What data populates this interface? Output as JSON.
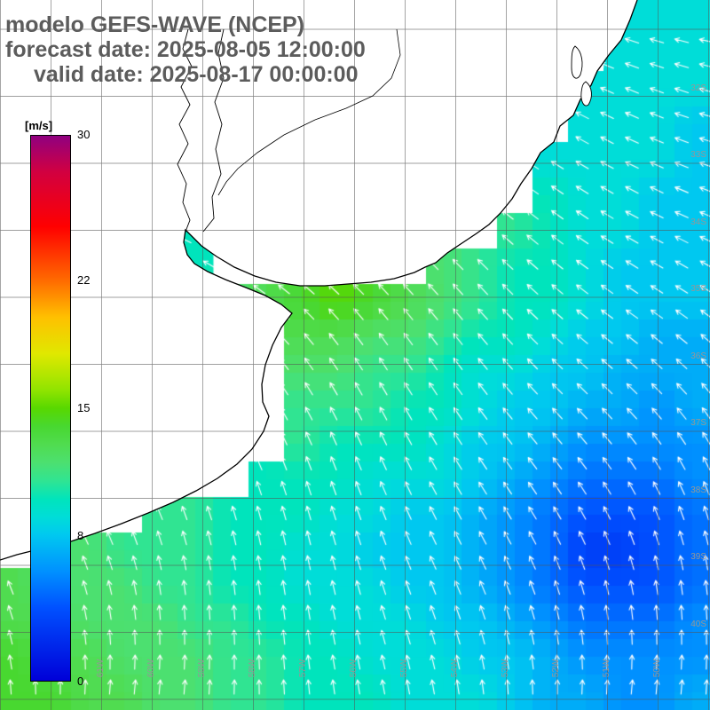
{
  "header": {
    "model_line": "modelo GEFS-WAVE (NCEP)",
    "forecast_line": "forecast date: 2025-08-05 12:00:00",
    "valid_line": "valid date: 2025-08-17 00:00:00",
    "text_color": "#5c5c5c"
  },
  "colorbar": {
    "unit": "[m/s]",
    "min": 0,
    "max": 30,
    "ticks": [
      {
        "label": "30",
        "value": 30
      },
      {
        "label": "22",
        "value": 22
      },
      {
        "label": "15",
        "value": 15
      },
      {
        "label": "8",
        "value": 8
      },
      {
        "label": "0",
        "value": 0
      }
    ]
  },
  "map": {
    "lat_labels": [
      "32S",
      "33S",
      "34S",
      "35S",
      "36S",
      "37S",
      "38S",
      "39S",
      "40S"
    ],
    "lon_labels": [
      "62W",
      "61W",
      "60W",
      "59W",
      "58W",
      "57W",
      "56W",
      "55W",
      "54W",
      "53W",
      "52W",
      "51W",
      "50W"
    ],
    "label_color": "#969696",
    "arrow_color": "#ffffff",
    "land_color": "#ffffff",
    "coast_color": "#000000",
    "grid_color": "#555555"
  },
  "chart_data": {
    "type": "heatmap",
    "units": "m/s",
    "value_range": [
      0,
      30
    ],
    "colormap": [
      [
        0,
        "#0000d8"
      ],
      [
        4,
        "#0050ff"
      ],
      [
        6,
        "#0090ff"
      ],
      [
        8,
        "#00c8f0"
      ],
      [
        9,
        "#00ddd8"
      ],
      [
        10,
        "#00e4bc"
      ],
      [
        11,
        "#30e492"
      ],
      [
        12,
        "#4ce070"
      ],
      [
        13,
        "#50dc50"
      ],
      [
        14,
        "#48d830"
      ],
      [
        15,
        "#58d800"
      ],
      [
        16,
        "#90e400"
      ],
      [
        18,
        "#e0e800"
      ],
      [
        20,
        "#ffc000"
      ],
      [
        22,
        "#ff6c00"
      ],
      [
        25,
        "#ff0000"
      ],
      [
        28,
        "#d20040"
      ],
      [
        30,
        "#900080"
      ]
    ],
    "grid_rows": 20,
    "grid_cols": 20,
    "grid": [
      [
        null,
        null,
        null,
        null,
        null,
        null,
        null,
        null,
        null,
        null,
        null,
        null,
        null,
        null,
        null,
        null,
        null,
        9,
        9,
        9
      ],
      [
        null,
        null,
        null,
        null,
        null,
        null,
        null,
        null,
        null,
        null,
        null,
        null,
        null,
        null,
        null,
        null,
        null,
        9,
        9,
        9
      ],
      [
        null,
        null,
        null,
        null,
        null,
        null,
        null,
        null,
        null,
        null,
        null,
        null,
        null,
        null,
        null,
        null,
        9,
        9,
        9,
        9
      ],
      [
        null,
        null,
        null,
        null,
        null,
        null,
        null,
        null,
        null,
        null,
        null,
        null,
        null,
        null,
        null,
        null,
        9,
        9,
        9,
        8
      ],
      [
        null,
        null,
        null,
        null,
        null,
        null,
        null,
        null,
        null,
        null,
        null,
        null,
        null,
        null,
        null,
        9,
        9,
        9,
        9,
        8
      ],
      [
        null,
        null,
        null,
        null,
        null,
        null,
        null,
        null,
        null,
        null,
        null,
        null,
        null,
        null,
        null,
        10,
        9,
        9,
        8,
        8
      ],
      [
        null,
        null,
        null,
        null,
        null,
        10,
        null,
        null,
        null,
        null,
        null,
        null,
        null,
        null,
        11,
        10,
        9,
        9,
        8,
        8
      ],
      [
        null,
        null,
        null,
        null,
        null,
        10,
        null,
        null,
        null,
        null,
        null,
        null,
        12,
        11,
        10,
        10,
        9,
        8,
        8,
        8
      ],
      [
        null,
        null,
        null,
        null,
        null,
        null,
        12,
        13,
        14,
        15,
        14,
        13,
        12,
        11,
        10,
        10,
        9,
        8,
        8,
        8
      ],
      [
        null,
        null,
        null,
        null,
        null,
        null,
        null,
        null,
        13,
        13,
        12,
        12,
        11,
        10,
        10,
        9,
        8,
        8,
        7,
        7
      ],
      [
        null,
        null,
        null,
        null,
        null,
        null,
        null,
        null,
        12,
        12,
        11,
        11,
        10,
        9,
        9,
        8,
        8,
        7,
        7,
        7
      ],
      [
        null,
        null,
        null,
        null,
        null,
        null,
        null,
        null,
        11,
        11,
        11,
        10,
        10,
        9,
        8,
        8,
        7,
        7,
        6,
        7
      ],
      [
        null,
        null,
        null,
        null,
        null,
        null,
        null,
        null,
        11,
        10,
        10,
        10,
        9,
        8,
        8,
        7,
        6,
        6,
        6,
        6
      ],
      [
        null,
        null,
        null,
        null,
        null,
        null,
        null,
        10,
        10,
        10,
        9,
        9,
        9,
        8,
        7,
        6,
        5,
        5,
        5,
        6
      ],
      [
        null,
        null,
        null,
        null,
        11,
        11,
        10,
        10,
        10,
        9,
        9,
        8,
        8,
        7,
        6,
        5,
        4,
        4,
        4,
        5
      ],
      [
        null,
        12,
        12,
        11,
        11,
        11,
        10,
        10,
        9,
        9,
        8,
        8,
        8,
        7,
        6,
        5,
        3,
        3,
        4,
        5
      ],
      [
        13,
        12,
        12,
        12,
        11,
        11,
        10,
        10,
        9,
        9,
        9,
        8,
        8,
        7,
        6,
        5,
        4,
        4,
        4,
        5
      ],
      [
        13,
        13,
        12,
        12,
        12,
        11,
        11,
        10,
        10,
        9,
        9,
        9,
        8,
        8,
        7,
        6,
        5,
        5,
        5,
        6
      ],
      [
        14,
        13,
        13,
        12,
        12,
        12,
        11,
        11,
        10,
        10,
        9,
        9,
        9,
        8,
        8,
        7,
        6,
        6,
        6,
        6
      ],
      [
        14,
        14,
        13,
        13,
        12,
        12,
        11,
        11,
        10,
        10,
        10,
        9,
        9,
        9,
        8,
        7,
        7,
        6,
        6,
        7
      ]
    ]
  }
}
